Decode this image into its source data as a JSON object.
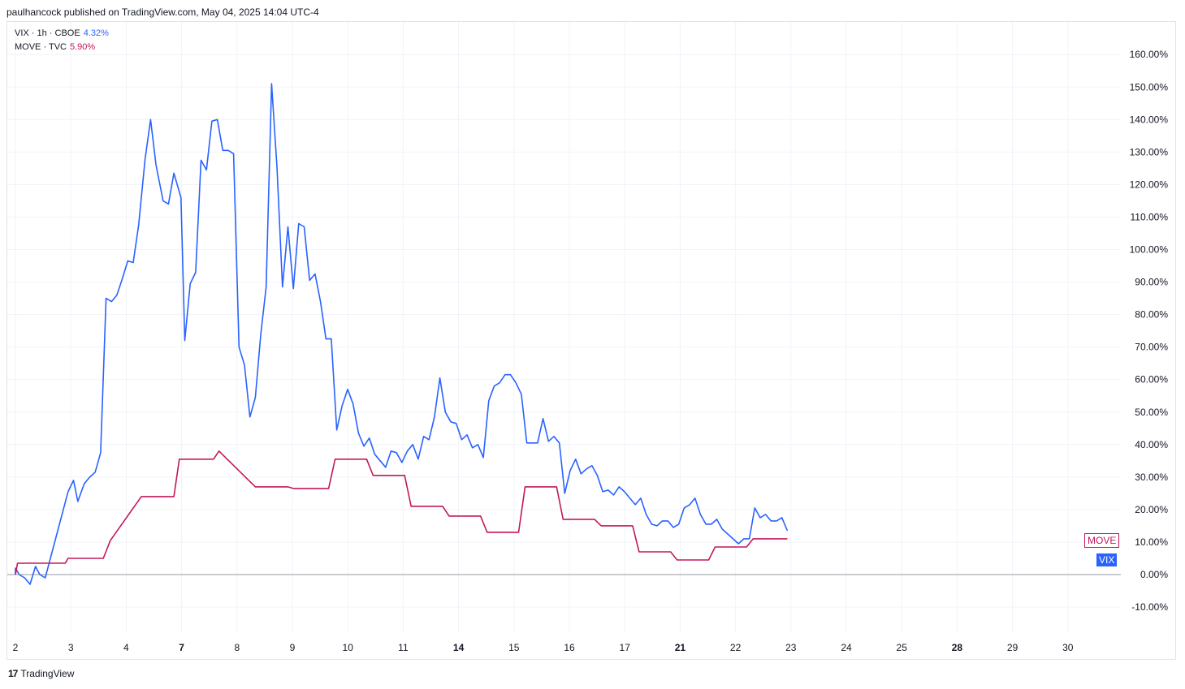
{
  "header": {
    "published": "paulhancock published on TradingView.com, May 04, 2025 14:04 UTC-4"
  },
  "legend": [
    {
      "label": "VIX · 1h · CBOE",
      "value": "4.32%",
      "color": "#2962ff"
    },
    {
      "label": "MOVE · TVC",
      "value": "5.90%",
      "color": "#c2185b"
    }
  ],
  "footer": {
    "brand": "TradingView",
    "logo": "TV-logo-icon"
  },
  "tags": {
    "move": "MOVE",
    "vix": "VIX"
  },
  "chart_data": {
    "type": "line",
    "x_ticks": [
      {
        "label": "2",
        "x": 0,
        "bold": false
      },
      {
        "label": "3",
        "x": 1,
        "bold": false
      },
      {
        "label": "4",
        "x": 2,
        "bold": false
      },
      {
        "label": "7",
        "x": 3,
        "bold": true
      },
      {
        "label": "8",
        "x": 4,
        "bold": false
      },
      {
        "label": "9",
        "x": 5,
        "bold": false
      },
      {
        "label": "10",
        "x": 6,
        "bold": false
      },
      {
        "label": "11",
        "x": 7,
        "bold": false
      },
      {
        "label": "14",
        "x": 8,
        "bold": true
      },
      {
        "label": "15",
        "x": 9,
        "bold": false
      },
      {
        "label": "16",
        "x": 10,
        "bold": false
      },
      {
        "label": "17",
        "x": 11,
        "bold": false
      },
      {
        "label": "21",
        "x": 12,
        "bold": true
      },
      {
        "label": "22",
        "x": 13,
        "bold": false
      },
      {
        "label": "23",
        "x": 14,
        "bold": false
      },
      {
        "label": "24",
        "x": 15,
        "bold": false
      },
      {
        "label": "25",
        "x": 16,
        "bold": false
      },
      {
        "label": "28",
        "x": 17,
        "bold": true
      },
      {
        "label": "29",
        "x": 18,
        "bold": false
      },
      {
        "label": "30",
        "x": 19,
        "bold": false
      }
    ],
    "y_ticks": [
      160,
      150,
      140,
      130,
      120,
      110,
      100,
      90,
      80,
      70,
      60,
      50,
      40,
      30,
      20,
      10,
      0,
      -10
    ],
    "y_tick_suffix": "%",
    "ylim": [
      -13,
      166
    ],
    "xlim": [
      0,
      20
    ],
    "zero_line": 0,
    "series": [
      {
        "name": "VIX",
        "color": "#2962ff",
        "points": [
          [
            0,
            0
          ],
          [
            0.03,
            2
          ],
          [
            0.1,
            0
          ],
          [
            0.2,
            -1
          ],
          [
            0.3,
            -3
          ],
          [
            0.4,
            2.5
          ],
          [
            0.48,
            0
          ],
          [
            0.58,
            -1
          ],
          [
            1.0,
            25.5
          ],
          [
            1.1,
            29
          ],
          [
            1.18,
            22.5
          ],
          [
            1.3,
            28
          ],
          [
            1.4,
            30
          ],
          [
            1.5,
            31.5
          ],
          [
            1.6,
            37.5
          ],
          [
            1.7,
            85
          ],
          [
            1.8,
            84
          ],
          [
            1.9,
            86
          ],
          [
            2.0,
            91
          ],
          [
            2.1,
            96.5
          ],
          [
            2.2,
            96
          ],
          [
            2.3,
            107.5
          ],
          [
            2.42,
            128
          ],
          [
            2.52,
            140
          ],
          [
            2.62,
            126
          ],
          [
            2.75,
            115
          ],
          [
            2.85,
            114
          ],
          [
            2.95,
            123.5
          ],
          [
            3.08,
            116
          ],
          [
            3.15,
            72
          ],
          [
            3.25,
            89.5
          ],
          [
            3.35,
            93
          ],
          [
            3.45,
            127.5
          ],
          [
            3.55,
            124.5
          ],
          [
            3.65,
            139.5
          ],
          [
            3.75,
            140
          ],
          [
            3.85,
            130.5
          ],
          [
            3.95,
            130.5
          ],
          [
            4.05,
            129.5
          ],
          [
            4.15,
            70
          ],
          [
            4.25,
            64.5
          ],
          [
            4.35,
            48.5
          ],
          [
            4.45,
            54.5
          ],
          [
            4.55,
            74
          ],
          [
            4.65,
            88.5
          ],
          [
            4.75,
            151
          ],
          [
            4.85,
            125
          ],
          [
            4.95,
            88.5
          ],
          [
            5.05,
            107
          ],
          [
            5.15,
            88
          ],
          [
            5.25,
            108
          ],
          [
            5.35,
            107
          ],
          [
            5.45,
            90.5
          ],
          [
            5.55,
            92.5
          ],
          [
            5.65,
            84
          ],
          [
            5.75,
            72.5
          ],
          [
            5.85,
            72.5
          ],
          [
            5.95,
            44.5
          ],
          [
            6.05,
            52
          ],
          [
            6.15,
            57
          ],
          [
            6.25,
            52.5
          ],
          [
            6.35,
            43.5
          ],
          [
            6.45,
            39.5
          ],
          [
            6.55,
            42
          ],
          [
            6.65,
            37
          ],
          [
            6.75,
            35
          ],
          [
            6.85,
            33
          ],
          [
            6.95,
            38
          ],
          [
            7.05,
            37.5
          ],
          [
            7.15,
            34.5
          ],
          [
            7.25,
            38
          ],
          [
            7.35,
            40
          ],
          [
            7.45,
            35.5
          ],
          [
            7.55,
            42.5
          ],
          [
            7.65,
            41.5
          ],
          [
            7.75,
            48.5
          ],
          [
            7.85,
            60.5
          ],
          [
            7.95,
            50
          ],
          [
            8.05,
            47
          ],
          [
            8.15,
            46.5
          ],
          [
            8.25,
            41.5
          ],
          [
            8.35,
            43
          ],
          [
            8.45,
            39
          ],
          [
            8.55,
            40
          ],
          [
            8.65,
            36
          ],
          [
            8.75,
            53.5
          ],
          [
            8.85,
            58
          ],
          [
            8.95,
            59
          ],
          [
            9.05,
            61.5
          ],
          [
            9.15,
            61.5
          ],
          [
            9.25,
            59
          ],
          [
            9.35,
            55.5
          ],
          [
            9.45,
            40.5
          ],
          [
            9.55,
            40.5
          ],
          [
            9.65,
            40.5
          ],
          [
            9.75,
            48
          ],
          [
            9.85,
            41
          ],
          [
            9.95,
            42.5
          ],
          [
            10.05,
            40.5
          ],
          [
            10.15,
            25
          ],
          [
            10.25,
            32
          ],
          [
            10.35,
            35.5
          ],
          [
            10.45,
            31
          ],
          [
            10.55,
            32.5
          ],
          [
            10.65,
            33.5
          ],
          [
            10.75,
            30.5
          ],
          [
            10.85,
            25.5
          ],
          [
            10.95,
            26
          ],
          [
            11.05,
            24.5
          ],
          [
            11.15,
            27
          ],
          [
            11.25,
            25.5
          ],
          [
            11.35,
            23.5
          ],
          [
            11.45,
            21.5
          ],
          [
            11.55,
            23.5
          ],
          [
            11.65,
            18.5
          ],
          [
            11.75,
            15.5
          ],
          [
            11.85,
            15
          ],
          [
            11.95,
            16.5
          ],
          [
            12.05,
            16.5
          ],
          [
            12.15,
            14.5
          ],
          [
            12.25,
            15.5
          ],
          [
            12.35,
            20.5
          ],
          [
            12.45,
            21.5
          ],
          [
            12.55,
            23.5
          ],
          [
            12.65,
            18.5
          ],
          [
            12.75,
            15.5
          ],
          [
            12.85,
            15.5
          ],
          [
            12.95,
            17
          ],
          [
            13.05,
            14
          ],
          [
            13.15,
            12.5
          ],
          [
            13.25,
            11
          ],
          [
            13.35,
            9.5
          ],
          [
            13.45,
            11
          ],
          [
            13.55,
            11
          ],
          [
            13.65,
            20.5
          ],
          [
            13.75,
            17.5
          ],
          [
            13.85,
            18.5
          ],
          [
            13.95,
            16.5
          ],
          [
            14.05,
            16.5
          ],
          [
            14.15,
            17.5
          ],
          [
            14.25,
            13.5
          ]
        ]
      },
      {
        "name": "MOVE",
        "color": "#c2185b",
        "points": [
          [
            0,
            0
          ],
          [
            0.07,
            3.5
          ],
          [
            0.95,
            3.5
          ],
          [
            1.0,
            5
          ],
          [
            1.65,
            5
          ],
          [
            1.78,
            10.5
          ],
          [
            2.35,
            24
          ],
          [
            2.95,
            24
          ],
          [
            3.05,
            35.5
          ],
          [
            3.68,
            35.5
          ],
          [
            3.78,
            38
          ],
          [
            4.45,
            27
          ],
          [
            5.05,
            27
          ],
          [
            5.15,
            26.5
          ],
          [
            5.8,
            26.5
          ],
          [
            5.92,
            35.5
          ],
          [
            6.5,
            35.5
          ],
          [
            6.62,
            30.5
          ],
          [
            7.2,
            30.5
          ],
          [
            7.32,
            21
          ],
          [
            7.9,
            21
          ],
          [
            8.02,
            18
          ],
          [
            8.6,
            18
          ],
          [
            8.72,
            13
          ],
          [
            9.3,
            13
          ],
          [
            9.42,
            27
          ],
          [
            10.0,
            27
          ],
          [
            10.12,
            17
          ],
          [
            10.7,
            17
          ],
          [
            10.82,
            15
          ],
          [
            11.4,
            15
          ],
          [
            11.52,
            7
          ],
          [
            12.1,
            7
          ],
          [
            12.22,
            4.5
          ],
          [
            12.8,
            4.5
          ],
          [
            12.92,
            8.5
          ],
          [
            13.5,
            8.5
          ],
          [
            13.62,
            11
          ],
          [
            14.25,
            11
          ]
        ]
      }
    ]
  }
}
